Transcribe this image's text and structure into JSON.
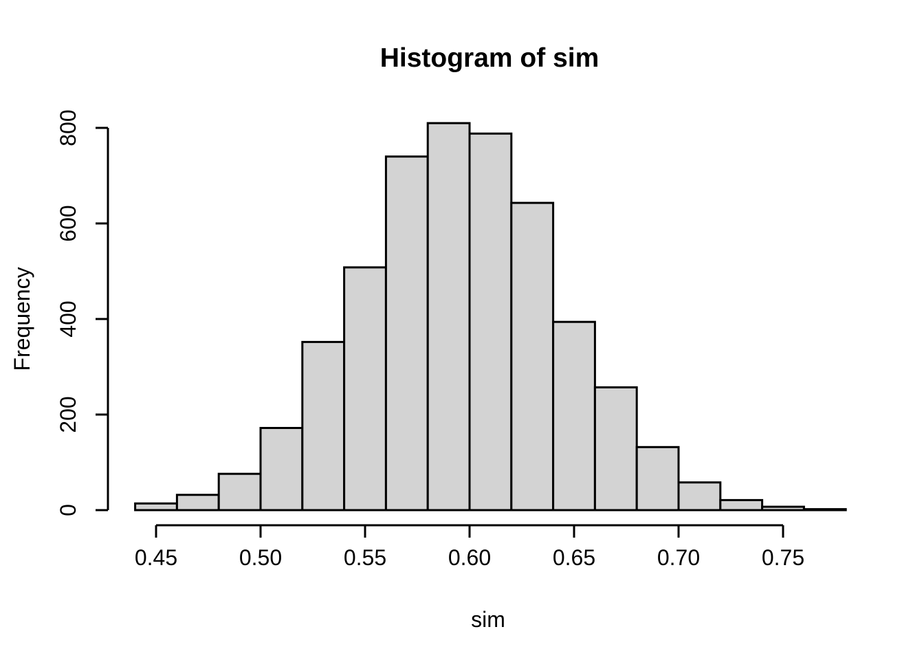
{
  "figure": {
    "background": "#FFFFFF"
  },
  "chart_data": {
    "type": "histogram",
    "title": "Histogram of sim",
    "xlabel": "sim",
    "ylabel": "Frequency",
    "bin_edges": [
      0.44,
      0.46,
      0.48,
      0.5,
      0.52,
      0.54,
      0.56,
      0.58,
      0.6,
      0.62,
      0.64,
      0.66,
      0.68,
      0.7,
      0.72,
      0.74,
      0.76,
      0.78
    ],
    "counts": [
      14,
      32,
      76,
      172,
      352,
      508,
      740,
      810,
      788,
      643,
      394,
      257,
      132,
      58,
      21,
      7,
      2
    ],
    "x_ticks": [
      0.45,
      0.5,
      0.55,
      0.6,
      0.65,
      0.7,
      0.75
    ],
    "x_tick_labels": [
      "0.45",
      "0.50",
      "0.55",
      "0.60",
      "0.65",
      "0.70",
      "0.75"
    ],
    "y_ticks": [
      0,
      200,
      400,
      600,
      800
    ],
    "y_tick_labels": [
      "0",
      "200",
      "400",
      "600",
      "800"
    ],
    "xlim": [
      0.44,
      0.78
    ],
    "ylim": [
      0,
      810
    ],
    "grid": false,
    "legend": null,
    "bar_fill": "#D3D3D3",
    "bar_stroke": "#000000",
    "axis_color": "#000000",
    "text_color": "#000000"
  }
}
